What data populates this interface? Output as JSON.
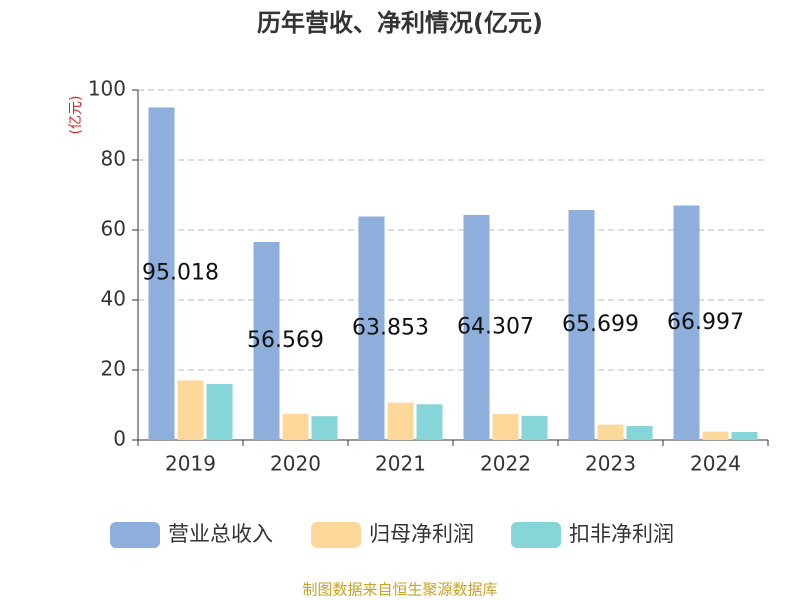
{
  "chart_data": {
    "type": "bar",
    "title": "历年营收、净利情况(亿元)",
    "y_label": "(亿元)",
    "categories": [
      "2019",
      "2020",
      "2021",
      "2022",
      "2023",
      "2024"
    ],
    "series": [
      {
        "name": "营业总收入",
        "color": "#8eaedb",
        "values": [
          95.018,
          56.569,
          63.853,
          64.307,
          65.699,
          66.997
        ]
      },
      {
        "name": "归母净利润",
        "color": "#fdd89a",
        "values": [
          17.0,
          7.5,
          10.7,
          7.4,
          4.4,
          2.4
        ]
      },
      {
        "name": "扣非净利润",
        "color": "#86d6d9",
        "values": [
          16.0,
          6.8,
          10.2,
          6.9,
          4.0,
          2.3
        ]
      }
    ],
    "label_series": 0,
    "ylim": [
      0,
      100
    ],
    "yticks": [
      0,
      20,
      40,
      60,
      80,
      100
    ],
    "grid": true,
    "source": "制图数据来自恒生聚源数据库"
  }
}
